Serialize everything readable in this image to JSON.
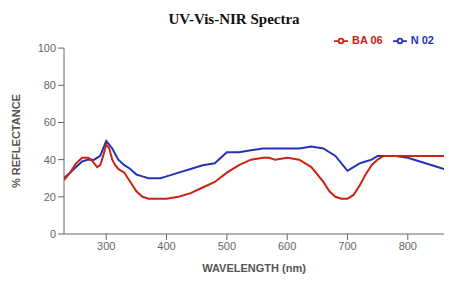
{
  "chart_data": {
    "type": "line",
    "title": "UV-Vis-NIR Spectra",
    "x_label": "WAVELENGTH (nm)",
    "y_label": "% REFLECTANCE",
    "xlim": [
      230,
      860
    ],
    "ylim": [
      0,
      100
    ],
    "xticks": [
      300,
      400,
      500,
      600,
      700,
      800
    ],
    "yticks": [
      0,
      20,
      40,
      60,
      80,
      100
    ],
    "grid": false,
    "legend": "upper right",
    "series": [
      {
        "name": "N 02",
        "color": "#2233bb",
        "x": [
          230,
          240,
          250,
          260,
          270,
          280,
          290,
          300,
          310,
          320,
          330,
          340,
          350,
          360,
          370,
          380,
          390,
          400,
          420,
          440,
          460,
          480,
          500,
          520,
          540,
          560,
          580,
          600,
          620,
          640,
          660,
          680,
          700,
          710,
          720,
          730,
          740,
          750,
          760,
          780,
          800,
          820,
          840,
          860
        ],
        "values": [
          30,
          33,
          36,
          39,
          40,
          40,
          42,
          50,
          46,
          40,
          37,
          35,
          32,
          31,
          30,
          30,
          30,
          31,
          33,
          35,
          37,
          38,
          44,
          44,
          45,
          46,
          46,
          46,
          46,
          47,
          46,
          42,
          34,
          36,
          38,
          39,
          40,
          42,
          42,
          42,
          41,
          39,
          37,
          35
        ]
      },
      {
        "name": "BA 06",
        "color": "#cc2211",
        "x": [
          230,
          240,
          250,
          260,
          270,
          275,
          280,
          285,
          290,
          295,
          300,
          305,
          310,
          315,
          320,
          330,
          340,
          350,
          360,
          370,
          380,
          390,
          400,
          420,
          440,
          460,
          480,
          500,
          520,
          540,
          560,
          570,
          580,
          600,
          620,
          640,
          660,
          670,
          680,
          690,
          700,
          710,
          720,
          730,
          740,
          750,
          760,
          780,
          800,
          820,
          840,
          860
        ],
        "values": [
          29,
          33,
          38,
          41,
          41,
          40,
          38,
          36,
          37,
          42,
          48,
          46,
          40,
          37,
          35,
          33,
          28,
          23,
          20,
          19,
          19,
          19,
          19,
          20,
          22,
          25,
          28,
          33,
          37,
          40,
          41,
          41,
          40,
          41,
          40,
          36,
          28,
          23,
          20,
          19,
          19,
          21,
          26,
          32,
          37,
          40,
          42,
          42,
          42,
          42,
          42,
          42
        ]
      }
    ]
  }
}
